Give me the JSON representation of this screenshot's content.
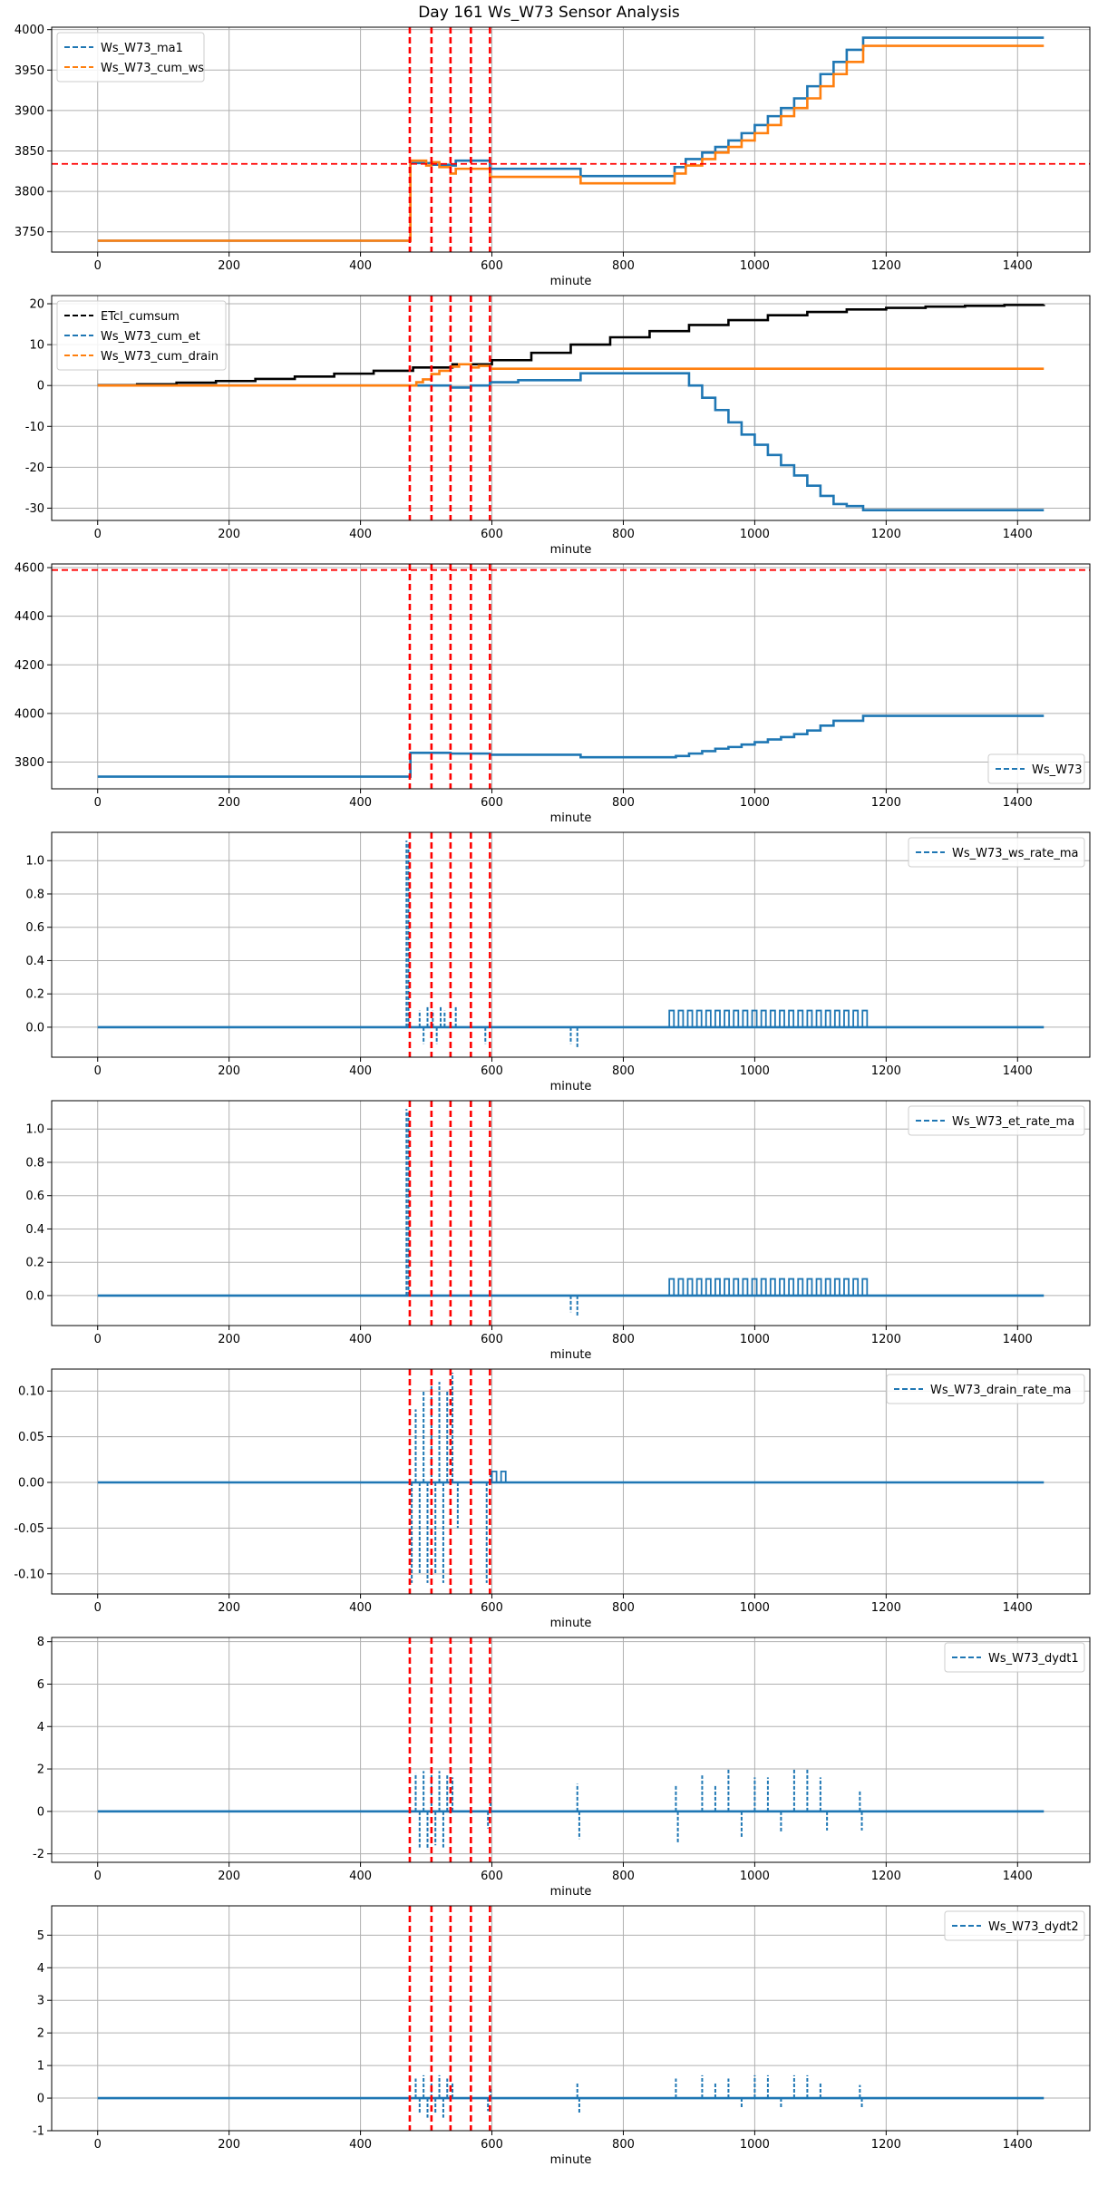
{
  "title": "Day 161 Ws_W73 Sensor Analysis",
  "colors": {
    "series_blue": "#1f77b4",
    "series_orange": "#ff7f0e",
    "series_black": "#000000",
    "marker_red": "#ff0000",
    "grid": "#b0b0b0",
    "axes": "#000000"
  },
  "chart_data": [
    {
      "type": "line",
      "xlabel": "minute",
      "xlim": [
        -70,
        1510
      ],
      "xticks": [
        0,
        200,
        400,
        600,
        800,
        1000,
        1200,
        1400
      ],
      "ylim": [
        3725,
        4003
      ],
      "yticks": [
        3750,
        3800,
        3850,
        3900,
        3950,
        4000
      ],
      "ytick_labels": [
        "3750",
        "3800",
        "3850",
        "3900",
        "3950",
        "4000"
      ],
      "legend_loc": "upper left",
      "legend": [
        "Ws_W73_ma1",
        "Ws_W73_cum_ws"
      ],
      "vlines": [
        475,
        508,
        537,
        568,
        597
      ],
      "hlines": [
        3834
      ],
      "series": [
        {
          "name": "Ws_W73_ma1",
          "color": "#1f77b4",
          "kind": "step",
          "x": [
            0,
            475,
            476,
            508,
            537,
            545,
            575,
            597,
            640,
            735,
            800,
            878,
            895,
            920,
            940,
            960,
            980,
            1000,
            1020,
            1040,
            1060,
            1080,
            1100,
            1120,
            1140,
            1165,
            1440
          ],
          "y": [
            3739,
            3739,
            3835,
            3833,
            3832,
            3838,
            3838,
            3828,
            3828,
            3819,
            3819,
            3830,
            3840,
            3848,
            3855,
            3863,
            3872,
            3882,
            3893,
            3903,
            3915,
            3930,
            3945,
            3960,
            3975,
            3990,
            3990
          ]
        },
        {
          "name": "Ws_W73_cum_ws",
          "color": "#ff7f0e",
          "kind": "step",
          "x": [
            0,
            475,
            476,
            500,
            508,
            520,
            537,
            545,
            597,
            640,
            735,
            800,
            878,
            895,
            920,
            940,
            960,
            980,
            1000,
            1020,
            1040,
            1060,
            1080,
            1100,
            1120,
            1140,
            1165,
            1440
          ],
          "y": [
            3739,
            3739,
            3838,
            3832,
            3836,
            3830,
            3822,
            3828,
            3818,
            3818,
            3810,
            3810,
            3822,
            3832,
            3840,
            3848,
            3855,
            3863,
            3872,
            3882,
            3893,
            3903,
            3915,
            3930,
            3945,
            3960,
            3980,
            3980
          ]
        }
      ]
    },
    {
      "type": "line",
      "xlabel": "minute",
      "xlim": [
        -70,
        1510
      ],
      "xticks": [
        0,
        200,
        400,
        600,
        800,
        1000,
        1200,
        1400
      ],
      "ylim": [
        -33,
        22
      ],
      "yticks": [
        -30,
        -20,
        -10,
        0,
        10,
        20
      ],
      "ytick_labels": [
        "-30",
        "-20",
        "-10",
        "0",
        "10",
        "20"
      ],
      "legend_loc": "upper left",
      "legend": [
        "ETcl_cumsum",
        "Ws_W73_cum_et",
        "Ws_W73_cum_drain"
      ],
      "vlines": [
        475,
        508,
        537,
        568,
        597
      ],
      "hlines": [],
      "series": [
        {
          "name": "ETcl_cumsum",
          "color": "#000000",
          "kind": "step",
          "x": [
            0,
            60,
            120,
            180,
            240,
            300,
            360,
            420,
            480,
            540,
            600,
            660,
            720,
            780,
            840,
            900,
            960,
            1020,
            1080,
            1140,
            1200,
            1260,
            1320,
            1380,
            1440
          ],
          "y": [
            0.1,
            0.3,
            0.7,
            1.1,
            1.6,
            2.2,
            2.9,
            3.6,
            4.4,
            5.2,
            6.2,
            8.0,
            10.0,
            11.8,
            13.3,
            14.8,
            16.0,
            17.2,
            18.0,
            18.6,
            19.0,
            19.3,
            19.5,
            19.7,
            19.8
          ]
        },
        {
          "name": "Ws_W73_cum_et",
          "color": "#1f77b4",
          "kind": "step",
          "x": [
            0,
            475,
            508,
            537,
            568,
            597,
            640,
            735,
            880,
            900,
            920,
            940,
            960,
            980,
            1000,
            1020,
            1040,
            1060,
            1080,
            1100,
            1120,
            1140,
            1165,
            1440
          ],
          "y": [
            0,
            0,
            0,
            -0.5,
            0,
            0.8,
            1.3,
            3.0,
            3.0,
            0,
            -3,
            -6,
            -9,
            -12,
            -14.5,
            -17,
            -19.5,
            -22,
            -24.5,
            -27,
            -29,
            -29.5,
            -30.5,
            -30.5
          ]
        },
        {
          "name": "Ws_W73_cum_drain",
          "color": "#ff7f0e",
          "kind": "step",
          "x": [
            0,
            475,
            485,
            495,
            508,
            520,
            537,
            550,
            568,
            580,
            597,
            640,
            1440
          ],
          "y": [
            0,
            0,
            0.8,
            1.5,
            2.8,
            3.6,
            4.6,
            5.2,
            4.4,
            4.8,
            4.1,
            4.1,
            4.1
          ]
        }
      ]
    },
    {
      "type": "line",
      "xlabel": "minute",
      "xlim": [
        -70,
        1510
      ],
      "xticks": [
        0,
        200,
        400,
        600,
        800,
        1000,
        1200,
        1400
      ],
      "ylim": [
        3690,
        4615
      ],
      "yticks": [
        3800,
        4000,
        4200,
        4400,
        4600
      ],
      "ytick_labels": [
        "3800",
        "4000",
        "4200",
        "4400",
        "4600"
      ],
      "legend_loc": "lower right",
      "legend": [
        "Ws_W73"
      ],
      "vlines": [
        475,
        508,
        537,
        568,
        597
      ],
      "hlines": [
        4590
      ],
      "series": [
        {
          "name": "Ws_W73",
          "color": "#1f77b4",
          "kind": "step",
          "x": [
            0,
            475,
            476,
            537,
            597,
            735,
            880,
            900,
            920,
            940,
            960,
            980,
            1000,
            1020,
            1040,
            1060,
            1080,
            1100,
            1120,
            1165,
            1440
          ],
          "y": [
            3740,
            3740,
            3838,
            3835,
            3830,
            3820,
            3825,
            3835,
            3845,
            3855,
            3862,
            3872,
            3882,
            3893,
            3903,
            3915,
            3930,
            3950,
            3970,
            3990,
            3990
          ]
        }
      ]
    },
    {
      "type": "line",
      "xlabel": "minute",
      "xlim": [
        -70,
        1510
      ],
      "xticks": [
        0,
        200,
        400,
        600,
        800,
        1000,
        1200,
        1400
      ],
      "ylim": [
        -0.18,
        1.17
      ],
      "yticks": [
        0.0,
        0.2,
        0.4,
        0.6,
        0.8,
        1.0
      ],
      "ytick_labels": [
        "0.0",
        "0.2",
        "0.4",
        "0.6",
        "0.8",
        "1.0"
      ],
      "legend_loc": "upper right",
      "legend": [
        "Ws_W73_ws_rate_ma"
      ],
      "vlines": [
        475,
        508,
        537,
        568,
        597
      ],
      "hlines": [],
      "baseline": 0.0,
      "spikes": [
        [
          470,
          1.12
        ],
        [
          473,
          1.1
        ],
        [
          490,
          0.1
        ],
        [
          496,
          -0.1
        ],
        [
          502,
          0.12
        ],
        [
          510,
          0.1
        ],
        [
          516,
          -0.1
        ],
        [
          522,
          0.12
        ],
        [
          528,
          0.1
        ],
        [
          545,
          0.12
        ],
        [
          590,
          -0.1
        ],
        [
          720,
          -0.1
        ],
        [
          730,
          -0.12
        ]
      ],
      "pulses": [
        {
          "start": 870,
          "end": 1165,
          "value": 0.1
        }
      ],
      "series": [
        {
          "name": "Ws_W73_ws_rate_ma",
          "color": "#1f77b4",
          "kind": "baseline-spikes",
          "x": [
            0,
            1440
          ],
          "y": [
            0,
            0
          ]
        }
      ]
    },
    {
      "type": "line",
      "xlabel": "minute",
      "xlim": [
        -70,
        1510
      ],
      "xticks": [
        0,
        200,
        400,
        600,
        800,
        1000,
        1200,
        1400
      ],
      "ylim": [
        -0.18,
        1.17
      ],
      "yticks": [
        0.0,
        0.2,
        0.4,
        0.6,
        0.8,
        1.0
      ],
      "ytick_labels": [
        "0.0",
        "0.2",
        "0.4",
        "0.6",
        "0.8",
        "1.0"
      ],
      "legend_loc": "upper right",
      "legend": [
        "Ws_W73_et_rate_ma"
      ],
      "vlines": [
        475,
        508,
        537,
        568,
        597
      ],
      "hlines": [],
      "baseline": 0.0,
      "spikes": [
        [
          470,
          1.12
        ],
        [
          473,
          1.1
        ],
        [
          720,
          -0.1
        ],
        [
          730,
          -0.12
        ]
      ],
      "pulses": [
        {
          "start": 870,
          "end": 1165,
          "value": 0.1
        }
      ],
      "series": [
        {
          "name": "Ws_W73_et_rate_ma",
          "color": "#1f77b4",
          "kind": "baseline-spikes",
          "x": [
            0,
            1440
          ],
          "y": [
            0,
            0
          ]
        }
      ]
    },
    {
      "type": "line",
      "xlabel": "minute",
      "xlim": [
        -70,
        1510
      ],
      "xticks": [
        0,
        200,
        400,
        600,
        800,
        1000,
        1200,
        1400
      ],
      "ylim": [
        -0.122,
        0.124
      ],
      "yticks": [
        -0.1,
        -0.05,
        0.0,
        0.05,
        0.1
      ],
      "ytick_labels": [
        "-0.10",
        "-0.05",
        "0.00",
        "0.05",
        "0.10"
      ],
      "legend_loc": "upper right",
      "legend": [
        "Ws_W73_drain_rate_ma"
      ],
      "vlines": [
        475,
        508,
        537,
        568,
        597
      ],
      "hlines": [],
      "baseline": 0.0,
      "spikes": [
        [
          478,
          -0.11
        ],
        [
          484,
          0.08
        ],
        [
          490,
          -0.1
        ],
        [
          496,
          0.1
        ],
        [
          502,
          -0.11
        ],
        [
          508,
          0.11
        ],
        [
          514,
          -0.1
        ],
        [
          520,
          0.11
        ],
        [
          526,
          -0.11
        ],
        [
          532,
          0.1
        ],
        [
          540,
          0.12
        ],
        [
          548,
          -0.05
        ],
        [
          592,
          -0.11
        ],
        [
          598,
          0.01
        ]
      ],
      "pulses": [
        {
          "start": 600,
          "end": 625,
          "value": 0.012
        }
      ],
      "series": [
        {
          "name": "Ws_W73_drain_rate_ma",
          "color": "#1f77b4",
          "kind": "baseline-spikes",
          "x": [
            0,
            1440
          ],
          "y": [
            0,
            0
          ]
        }
      ]
    },
    {
      "type": "line",
      "xlabel": "minute",
      "xlim": [
        -70,
        1510
      ],
      "xticks": [
        0,
        200,
        400,
        600,
        800,
        1000,
        1200,
        1400
      ],
      "ylim": [
        -2.4,
        8.2
      ],
      "yticks": [
        -2,
        0,
        2,
        4,
        6,
        8
      ],
      "ytick_labels": [
        "-2",
        "0",
        "2",
        "4",
        "6",
        "8"
      ],
      "legend_loc": "upper right",
      "legend": [
        "Ws_W73_dydt1"
      ],
      "vlines": [
        475,
        508,
        537,
        568,
        597
      ],
      "hlines": [],
      "baseline": 0.0,
      "spikes": [
        [
          484,
          1.8
        ],
        [
          490,
          -1.7
        ],
        [
          496,
          1.9
        ],
        [
          502,
          -1.8
        ],
        [
          508,
          1.8
        ],
        [
          514,
          -1.6
        ],
        [
          520,
          1.9
        ],
        [
          526,
          -1.7
        ],
        [
          532,
          1.7
        ],
        [
          540,
          1.6
        ],
        [
          594,
          -0.8
        ],
        [
          598,
          0.7
        ],
        [
          730,
          1.3
        ],
        [
          733,
          -1.3
        ],
        [
          880,
          1.2
        ],
        [
          883,
          -1.5
        ],
        [
          920,
          1.7
        ],
        [
          940,
          1.2
        ],
        [
          960,
          2.0
        ],
        [
          980,
          -1.2
        ],
        [
          1000,
          1.6
        ],
        [
          1020,
          1.6
        ],
        [
          1040,
          -1.0
        ],
        [
          1060,
          2.0
        ],
        [
          1080,
          2.0
        ],
        [
          1100,
          1.6
        ],
        [
          1110,
          -0.9
        ],
        [
          1160,
          1.0
        ],
        [
          1163,
          -0.9
        ]
      ],
      "pulses": [],
      "series": [
        {
          "name": "Ws_W73_dydt1",
          "color": "#1f77b4",
          "kind": "baseline-spikes",
          "x": [
            0,
            1440
          ],
          "y": [
            0,
            0
          ]
        }
      ]
    },
    {
      "type": "line",
      "xlabel": "minute",
      "xlim": [
        -70,
        1510
      ],
      "xticks": [
        0,
        200,
        400,
        600,
        800,
        1000,
        1200,
        1400
      ],
      "ylim": [
        -1.0,
        5.9
      ],
      "yticks": [
        -1,
        0,
        1,
        2,
        3,
        4,
        5
      ],
      "ytick_labels": [
        "-1",
        "0",
        "1",
        "2",
        "3",
        "4",
        "5"
      ],
      "legend_loc": "upper right",
      "legend": [
        "Ws_W73_dydt2"
      ],
      "vlines": [
        475,
        508,
        537,
        568,
        597
      ],
      "hlines": [],
      "baseline": 0.0,
      "spikes": [
        [
          484,
          0.6
        ],
        [
          490,
          -0.5
        ],
        [
          496,
          0.7
        ],
        [
          502,
          -0.6
        ],
        [
          508,
          0.7
        ],
        [
          514,
          -0.5
        ],
        [
          520,
          0.7
        ],
        [
          526,
          -0.6
        ],
        [
          532,
          0.6
        ],
        [
          540,
          0.5
        ],
        [
          594,
          -0.4
        ],
        [
          598,
          0.3
        ],
        [
          730,
          0.5
        ],
        [
          733,
          -0.5
        ],
        [
          880,
          0.6
        ],
        [
          920,
          0.7
        ],
        [
          940,
          0.5
        ],
        [
          960,
          0.6
        ],
        [
          980,
          -0.3
        ],
        [
          1000,
          0.7
        ],
        [
          1020,
          0.7
        ],
        [
          1040,
          -0.3
        ],
        [
          1060,
          0.7
        ],
        [
          1080,
          0.7
        ],
        [
          1100,
          0.5
        ],
        [
          1160,
          0.4
        ],
        [
          1163,
          -0.3
        ]
      ],
      "pulses": [],
      "series": [
        {
          "name": "Ws_W73_dydt2",
          "color": "#1f77b4",
          "kind": "baseline-spikes",
          "x": [
            0,
            1440
          ],
          "y": [
            0,
            0
          ]
        }
      ]
    }
  ]
}
